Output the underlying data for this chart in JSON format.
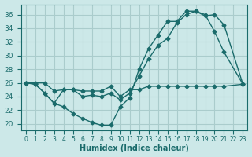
{
  "xlabel": "Humidex (Indice chaleur)",
  "ylabel": "",
  "bg_color": "#cce8e8",
  "grid_color": "#aacccc",
  "line_color": "#1a6b6b",
  "xlim": [
    -0.5,
    23.5
  ],
  "ylim": [
    19,
    37.5
  ],
  "yticks": [
    20,
    22,
    24,
    26,
    28,
    30,
    32,
    34,
    36
  ],
  "xticks": [
    0,
    1,
    2,
    3,
    4,
    5,
    6,
    7,
    8,
    9,
    10,
    11,
    12,
    13,
    14,
    15,
    16,
    17,
    18,
    19,
    20,
    21,
    22,
    23
  ],
  "xtick_labels": [
    "0",
    "1",
    "2",
    "3",
    "4",
    "5",
    "6",
    "7",
    "8",
    "9",
    "10",
    "11",
    "12",
    "13",
    "14",
    "15",
    "16",
    "17",
    "18",
    "19",
    "20",
    "21",
    "22",
    "23"
  ],
  "series": [
    {
      "x": [
        0,
        1,
        2,
        3,
        4,
        5,
        6,
        7,
        8,
        9,
        10,
        11,
        12,
        13,
        14,
        15,
        16,
        17,
        18,
        19,
        20,
        21,
        23
      ],
      "y": [
        26.0,
        25.8,
        24.5,
        23.0,
        22.5,
        21.5,
        20.8,
        20.2,
        19.8,
        19.8,
        22.5,
        23.8,
        28.0,
        31.0,
        33.0,
        35.0,
        35.0,
        36.5,
        36.5,
        36.0,
        33.5,
        30.5,
        25.8
      ]
    },
    {
      "x": [
        0,
        1,
        2,
        3,
        4,
        5,
        6,
        7,
        8,
        9,
        10,
        11,
        12,
        13,
        14,
        15,
        16,
        17,
        18,
        19,
        20,
        21,
        23
      ],
      "y": [
        26.0,
        25.8,
        24.5,
        23.0,
        25.0,
        25.0,
        24.0,
        24.2,
        24.0,
        24.5,
        23.5,
        24.5,
        27.0,
        29.5,
        31.5,
        32.5,
        34.8,
        36.0,
        36.5,
        35.8,
        36.0,
        34.5,
        25.8
      ]
    },
    {
      "x": [
        0,
        1,
        2,
        3,
        4,
        5,
        6,
        7,
        8,
        9,
        10,
        11,
        12,
        13,
        14,
        15,
        16,
        17,
        18,
        19,
        20,
        21,
        23
      ],
      "y": [
        26.0,
        26.0,
        26.0,
        24.8,
        25.0,
        25.0,
        24.8,
        24.8,
        24.8,
        25.5,
        24.0,
        25.0,
        25.0,
        25.5,
        25.5,
        25.5,
        25.5,
        25.5,
        25.5,
        25.5,
        25.5,
        25.5,
        25.8
      ]
    }
  ]
}
